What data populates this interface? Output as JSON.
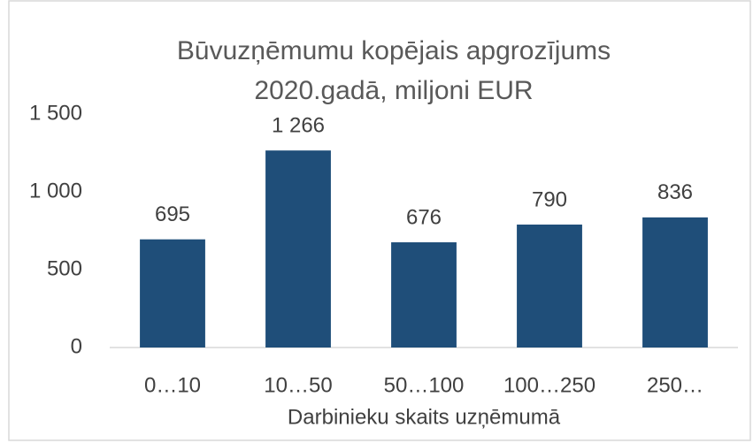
{
  "chart_data": {
    "type": "bar",
    "title": "Būvuzņēmumu kopējais apgrozījums 2020.gadā, miljoni EUR",
    "x_label": "Darbinieku skaits uzņēmumā",
    "categories": [
      "0…10",
      "10…50",
      "50…100",
      "100…250",
      "250…"
    ],
    "values": [
      695,
      1266,
      676,
      790,
      836
    ],
    "value_labels": [
      "695",
      "1 266",
      "676",
      "790",
      "836"
    ],
    "color": "#1f4e79",
    "ylim": [
      0,
      1500
    ],
    "yticks": [
      0,
      500,
      {
        "value": 1000,
        "label": "1 000"
      },
      {
        "value": 1500,
        "label": "1 500"
      }
    ],
    "grid": false
  }
}
